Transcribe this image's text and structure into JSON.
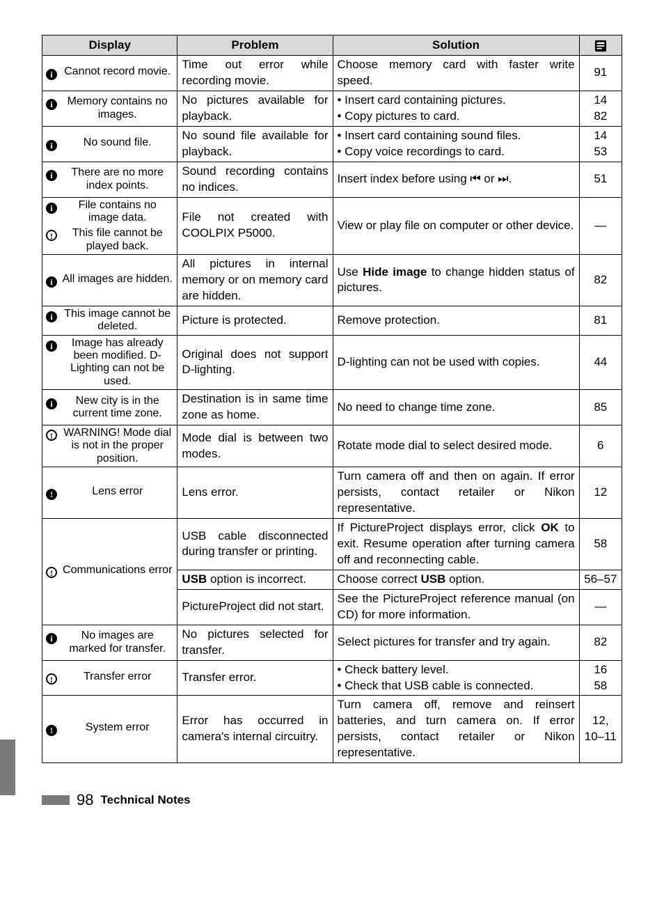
{
  "headers": {
    "display": "Display",
    "problem": "Problem",
    "solution": "Solution",
    "page_icon": "page-ref-icon"
  },
  "rows": [
    {
      "icon": "ℹ",
      "display": "Cannot record movie.",
      "problem": "Time out error while recording movie.",
      "solution": "Choose memory card with faster write speed.",
      "page": "91"
    },
    {
      "icon": "ℹ",
      "display": "Memory contains no images.",
      "problem": "No pictures available for playback.",
      "solution_lines": [
        "• Insert card containing pictures.",
        "• Copy pictures to card."
      ],
      "page_lines": [
        "14",
        "82"
      ]
    },
    {
      "icon": "ℹ",
      "display": "No sound file.",
      "problem": "No sound file available for playback.",
      "solution_lines": [
        "• Insert card containing sound files.",
        "• Copy voice recordings to card."
      ],
      "page_lines": [
        "14",
        "53"
      ]
    },
    {
      "icon": "ℹ",
      "display": "There are no more index points.",
      "problem": "Sound recording contains no indices.",
      "solution_html": "Insert index before using ⏮ or ⏭.",
      "page": "51"
    },
    {
      "merged": true,
      "top_icon": "ℹ",
      "top_display": "File contains no image data.",
      "bot_icon": "⊘",
      "bot_display": "This file cannot be played back.",
      "problem": "File not created with COOLPIX P5000.",
      "solution": "View or play file on computer or other device.",
      "page": "—"
    },
    {
      "icon": "ℹ",
      "display": "All images are hidden.",
      "problem": "All pictures in internal memory or on memory card are hidden.",
      "solution_html": "Use <b>Hide image</b> to change hidden status of pictures.",
      "page": "82"
    },
    {
      "icon": "ℹ",
      "display": "This image cannot be deleted.",
      "problem": "Picture is protected.",
      "solution": "Remove protection.",
      "page": "81"
    },
    {
      "icon": "ℹ",
      "display": "Image has already been modified.  D-Lighting can not be used.",
      "problem": "Original does not support D-lighting.",
      "solution": "D-lighting can not be used with copies.",
      "page": "44"
    },
    {
      "icon": "ℹ",
      "display": "New city is in the current time zone.",
      "problem": "Destination is in same time zone as home.",
      "solution": "No need to change time zone.",
      "page": "85"
    },
    {
      "icon": "⊘",
      "display": "WARNING! Mode dial is not in the proper position.",
      "problem": "Mode dial is between two modes.",
      "solution": "Rotate mode dial to select desired mode.",
      "page": "6"
    },
    {
      "icon": "⚠",
      "display": "Lens error",
      "problem": "Lens error.",
      "solution": "Turn camera off and then on again.  If error persists, contact retailer or Nikon representative.",
      "page": "12"
    },
    {
      "comm": true,
      "icon": "⊘",
      "display": "Communications error",
      "r1_problem": "USB cable disconnected during transfer or printing.",
      "r1_solution_html": "If PictureProject displays error, click <b>OK</b> to exit.  Resume operation after turning camera off and reconnecting cable.",
      "r1_page": "58",
      "r2_problem_html": "<b>USB</b> option is incorrect.",
      "r2_solution_html": "Choose correct <b>USB</b> option.",
      "r2_page": "56–57",
      "r3_problem": "PictureProject did not start.",
      "r3_solution": "See the PictureProject reference manual (on CD) for more information.",
      "r3_page": "—"
    },
    {
      "icon": "ℹ",
      "display": "No images are marked for transfer.",
      "problem": "No pictures selected for transfer.",
      "solution": "Select pictures for transfer and try again.",
      "page": "82"
    },
    {
      "icon": "⊘",
      "display": "Transfer error",
      "problem": "Transfer error.",
      "solution_lines": [
        "• Check battery level.",
        "• Check that USB cable is connected."
      ],
      "page_lines": [
        "16",
        "58"
      ]
    },
    {
      "icon": "⚠",
      "display": "System error",
      "problem": "Error has occurred in camera's internal circuitry.",
      "solution": "Turn camera off, remove and reinsert batteries, and turn camera on.  If error persists, contact retailer or Nikon representative.",
      "page": "12, 10–11"
    }
  ],
  "footer": {
    "page_number": "98",
    "label": "Technical Notes"
  },
  "icon_map": {
    "ℹ": "info-icon",
    "⊘": "caution-icon",
    "⚠": "warning-icon"
  }
}
